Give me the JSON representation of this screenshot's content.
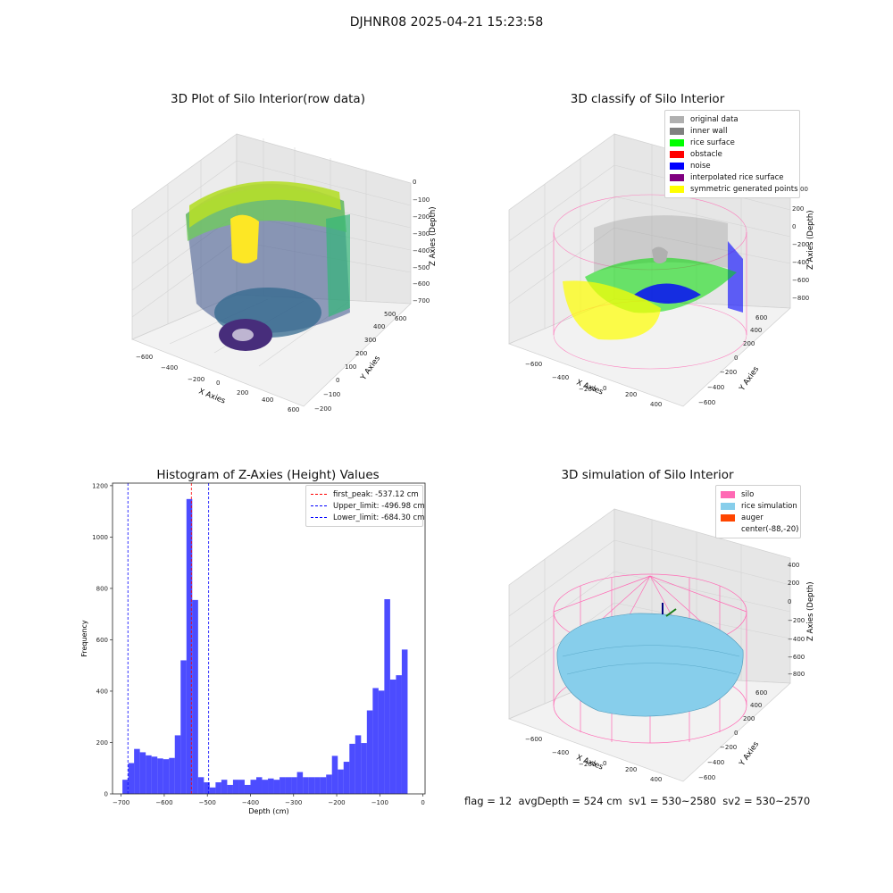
{
  "suptitle": "DJHNR08 2025-04-21 15:23:58",
  "status_text": "flag = 12  avgDepth = 524 cm  sv1 = 530~2580  sv2 = 530~2570",
  "panels": {
    "raw": {
      "title": "3D Plot of Silo Interior(row data)",
      "xlabel": "X Axies",
      "ylabel": "Y Axies",
      "zlabel": "Z Axies (Depth)",
      "xticks": [
        "−600",
        "−400",
        "−200",
        "0",
        "200",
        "400",
        "600"
      ],
      "yticks": [
        "−200",
        "−100",
        "0",
        "100",
        "200",
        "300",
        "400",
        "500",
        "600"
      ],
      "zticks": [
        "0",
        "−100",
        "−200",
        "−300",
        "−400",
        "−500",
        "−600",
        "−700"
      ]
    },
    "classify": {
      "title": "3D classify of Silo Interior",
      "xlabel": "X Axies",
      "ylabel": "Y Axies",
      "zlabel": "Z Axies (Depth)",
      "xticks": [
        "−600",
        "−400",
        "−200",
        "0",
        "200",
        "400"
      ],
      "yticks": [
        "−600",
        "−400",
        "−200",
        "0",
        "200",
        "400",
        "600"
      ],
      "zticks": [
        "200",
        "0",
        "−200",
        "−400",
        "−600",
        "−800"
      ],
      "legend": [
        {
          "label": "original data",
          "color": "#b0b0b0"
        },
        {
          "label": "inner wall",
          "color": "#808080"
        },
        {
          "label": "rice surface",
          "color": "#00ff00"
        },
        {
          "label": "obstacle",
          "color": "#ff0000"
        },
        {
          "label": "noise",
          "color": "#0000ff"
        },
        {
          "label": "interpolated rice surface",
          "color": "#800080"
        },
        {
          "label": "symmetric generated points",
          "color": "#ffff00"
        }
      ],
      "clipped_tick": "00"
    },
    "simulation": {
      "title": "3D simulation of Silo Interior",
      "xlabel": "X Axies",
      "ylabel": "Y Axies",
      "zlabel": "Z Axies (Depth)",
      "xticks": [
        "−600",
        "−400",
        "−200",
        "0",
        "200",
        "400"
      ],
      "yticks": [
        "−600",
        "−400",
        "−200",
        "0",
        "200",
        "400",
        "600"
      ],
      "zticks": [
        "400",
        "200",
        "0",
        "−200",
        "−400",
        "−600",
        "−800"
      ],
      "legend": [
        {
          "label": "silo",
          "color": "#ff69b4"
        },
        {
          "label": "rice simulation",
          "color": "#87ceeb"
        },
        {
          "label": "auger",
          "color": "#ff4500"
        },
        {
          "label": "center(-88,-20)",
          "color": "#ffffff"
        }
      ]
    }
  },
  "chart_data": {
    "type": "bar",
    "title": "Histogram of Z-Axies (Height) Values",
    "xlabel": "Depth (cm)",
    "ylabel": "Frequency",
    "xlim": [
      -720,
      5
    ],
    "ylim": [
      0,
      1210
    ],
    "xticks": [
      -700,
      -600,
      -500,
      -400,
      -300,
      -200,
      -100,
      0
    ],
    "yticks": [
      0,
      200,
      400,
      600,
      800,
      1000,
      1200
    ],
    "bin_start": -697,
    "bin_width": 13.5,
    "values": [
      55,
      120,
      175,
      162,
      150,
      145,
      138,
      135,
      140,
      228,
      520,
      1148,
      755,
      65,
      45,
      25,
      45,
      55,
      35,
      55,
      55,
      35,
      55,
      65,
      55,
      60,
      55,
      65,
      65,
      65,
      85,
      65,
      65,
      65,
      65,
      75,
      148,
      95,
      125,
      195,
      228,
      198,
      325,
      412,
      402,
      758,
      445,
      462,
      562
    ],
    "bar_color": "#0000ff",
    "vlines": [
      {
        "x": -537.12,
        "label": "first_peak: -537.12 cm",
        "color": "#ff0000"
      },
      {
        "x": -496.98,
        "label": "Upper_limit: -496.98 cm",
        "color": "#0000ff"
      },
      {
        "x": -684.3,
        "label": "Lower_limit: -684.30 cm",
        "color": "#0000ff"
      }
    ],
    "legend_position": "upper right"
  }
}
